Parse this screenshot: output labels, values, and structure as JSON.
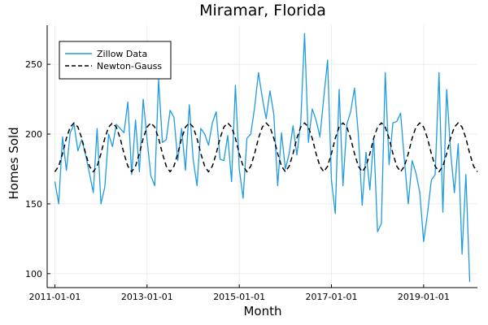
{
  "chart_data": {
    "type": "line",
    "title": "Miramar, Florida",
    "xlabel": "Month",
    "ylabel": "Homes Sold",
    "x_ticks": [
      "2011-01-01",
      "2013-01-01",
      "2015-01-01",
      "2017-01-01",
      "2019-01-01"
    ],
    "y_ticks": [
      100,
      150,
      200,
      250
    ],
    "xlim": [
      "2010-11-01",
      "2020-03-01"
    ],
    "ylim": [
      90,
      278
    ],
    "grid": true,
    "legend_position": "top-left",
    "series": [
      {
        "name": "Zillow Data",
        "color": "#1f9bde",
        "style": "solid",
        "points": [
          [
            "2011-01",
            166
          ],
          [
            "2011-02",
            150
          ],
          [
            "2011-03",
            198
          ],
          [
            "2011-04",
            174
          ],
          [
            "2011-05",
            201
          ],
          [
            "2011-06",
            207
          ],
          [
            "2011-07",
            188
          ],
          [
            "2011-08",
            196
          ],
          [
            "2011-09",
            185
          ],
          [
            "2011-10",
            172
          ],
          [
            "2011-11",
            158
          ],
          [
            "2011-12",
            204
          ],
          [
            "2012-01",
            150
          ],
          [
            "2012-02",
            162
          ],
          [
            "2012-03",
            200
          ],
          [
            "2012-04",
            191
          ],
          [
            "2012-05",
            207
          ],
          [
            "2012-06",
            204
          ],
          [
            "2012-07",
            201
          ],
          [
            "2012-08",
            223
          ],
          [
            "2012-09",
            171
          ],
          [
            "2012-10",
            210
          ],
          [
            "2012-11",
            173
          ],
          [
            "2012-12",
            225
          ],
          [
            "2013-01",
            196
          ],
          [
            "2013-02",
            170
          ],
          [
            "2013-03",
            163
          ],
          [
            "2013-04",
            239
          ],
          [
            "2013-05",
            194
          ],
          [
            "2013-06",
            196
          ],
          [
            "2013-07",
            217
          ],
          [
            "2013-08",
            212
          ],
          [
            "2013-09",
            181
          ],
          [
            "2013-10",
            204
          ],
          [
            "2013-11",
            174
          ],
          [
            "2013-12",
            221
          ],
          [
            "2014-01",
            182
          ],
          [
            "2014-02",
            163
          ],
          [
            "2014-03",
            204
          ],
          [
            "2014-04",
            200
          ],
          [
            "2014-05",
            192
          ],
          [
            "2014-06",
            208
          ],
          [
            "2014-07",
            216
          ],
          [
            "2014-08",
            182
          ],
          [
            "2014-09",
            181
          ],
          [
            "2014-10",
            199
          ],
          [
            "2014-11",
            166
          ],
          [
            "2014-12",
            235
          ],
          [
            "2015-01",
            175
          ],
          [
            "2015-02",
            154
          ],
          [
            "2015-03",
            197
          ],
          [
            "2015-04",
            200
          ],
          [
            "2015-05",
            219
          ],
          [
            "2015-06",
            244
          ],
          [
            "2015-07",
            226
          ],
          [
            "2015-08",
            211
          ],
          [
            "2015-09",
            231
          ],
          [
            "2015-10",
            214
          ],
          [
            "2015-11",
            163
          ],
          [
            "2015-12",
            201
          ],
          [
            "2016-01",
            175
          ],
          [
            "2016-02",
            186
          ],
          [
            "2016-03",
            206
          ],
          [
            "2016-04",
            185
          ],
          [
            "2016-05",
            208
          ],
          [
            "2016-06",
            272
          ],
          [
            "2016-07",
            194
          ],
          [
            "2016-08",
            218
          ],
          [
            "2016-09",
            210
          ],
          [
            "2016-10",
            198
          ],
          [
            "2016-11",
            226
          ],
          [
            "2016-12",
            253
          ],
          [
            "2017-01",
            167
          ],
          [
            "2017-02",
            143
          ],
          [
            "2017-03",
            232
          ],
          [
            "2017-04",
            163
          ],
          [
            "2017-05",
            207
          ],
          [
            "2017-06",
            216
          ],
          [
            "2017-07",
            233
          ],
          [
            "2017-08",
            200
          ],
          [
            "2017-09",
            149
          ],
          [
            "2017-10",
            187
          ],
          [
            "2017-11",
            160
          ],
          [
            "2017-12",
            197
          ],
          [
            "2018-01",
            130
          ],
          [
            "2018-02",
            136
          ],
          [
            "2018-03",
            244
          ],
          [
            "2018-04",
            178
          ],
          [
            "2018-05",
            208
          ],
          [
            "2018-06",
            209
          ],
          [
            "2018-07",
            215
          ],
          [
            "2018-08",
            181
          ],
          [
            "2018-09",
            150
          ],
          [
            "2018-10",
            181
          ],
          [
            "2018-11",
            172
          ],
          [
            "2018-12",
            158
          ],
          [
            "2019-01",
            123
          ],
          [
            "2019-02",
            143
          ],
          [
            "2019-03",
            167
          ],
          [
            "2019-04",
            171
          ],
          [
            "2019-05",
            244
          ],
          [
            "2019-06",
            144
          ],
          [
            "2019-07",
            232
          ],
          [
            "2019-08",
            188
          ],
          [
            "2019-09",
            158
          ],
          [
            "2019-10",
            193
          ],
          [
            "2019-11",
            114
          ],
          [
            "2019-12",
            171
          ],
          [
            "2020-01",
            94
          ]
        ]
      },
      {
        "name": "Newton-Gauss",
        "color": "#000000",
        "style": "dashed",
        "points": [
          [
            "2011-01",
            173
          ],
          [
            "2011-02",
            177
          ],
          [
            "2011-03",
            186
          ],
          [
            "2011-04",
            197
          ],
          [
            "2011-05",
            205
          ],
          [
            "2011-06",
            208
          ],
          [
            "2011-07",
            205
          ],
          [
            "2011-08",
            197
          ],
          [
            "2011-09",
            186
          ],
          [
            "2011-10",
            177
          ],
          [
            "2011-11",
            173
          ],
          [
            "2011-12",
            177
          ],
          [
            "2012-01",
            186
          ],
          [
            "2012-02",
            197
          ],
          [
            "2012-03",
            205
          ],
          [
            "2012-04",
            208
          ],
          [
            "2012-05",
            205
          ],
          [
            "2012-06",
            197
          ],
          [
            "2012-07",
            186
          ],
          [
            "2012-08",
            177
          ],
          [
            "2012-09",
            173
          ],
          [
            "2012-10",
            177
          ],
          [
            "2012-11",
            186
          ],
          [
            "2012-12",
            197
          ],
          [
            "2013-01",
            205
          ],
          [
            "2013-02",
            208
          ],
          [
            "2013-03",
            205
          ],
          [
            "2013-04",
            197
          ],
          [
            "2013-05",
            186
          ],
          [
            "2013-06",
            177
          ],
          [
            "2013-07",
            173
          ],
          [
            "2013-08",
            177
          ],
          [
            "2013-09",
            186
          ],
          [
            "2013-10",
            197
          ],
          [
            "2013-11",
            205
          ],
          [
            "2013-12",
            208
          ],
          [
            "2014-01",
            205
          ],
          [
            "2014-02",
            197
          ],
          [
            "2014-03",
            186
          ],
          [
            "2014-04",
            177
          ],
          [
            "2014-05",
            173
          ],
          [
            "2014-06",
            177
          ],
          [
            "2014-07",
            186
          ],
          [
            "2014-08",
            197
          ],
          [
            "2014-09",
            205
          ],
          [
            "2014-10",
            208
          ],
          [
            "2014-11",
            205
          ],
          [
            "2014-12",
            197
          ],
          [
            "2015-01",
            186
          ],
          [
            "2015-02",
            177
          ],
          [
            "2015-03",
            173
          ],
          [
            "2015-04",
            177
          ],
          [
            "2015-05",
            186
          ],
          [
            "2015-06",
            197
          ],
          [
            "2015-07",
            205
          ],
          [
            "2015-08",
            208
          ],
          [
            "2015-09",
            205
          ],
          [
            "2015-10",
            197
          ],
          [
            "2015-11",
            186
          ],
          [
            "2015-12",
            177
          ],
          [
            "2016-01",
            173
          ],
          [
            "2016-02",
            177
          ],
          [
            "2016-03",
            186
          ],
          [
            "2016-04",
            197
          ],
          [
            "2016-05",
            205
          ],
          [
            "2016-06",
            208
          ],
          [
            "2016-07",
            205
          ],
          [
            "2016-08",
            197
          ],
          [
            "2016-09",
            186
          ],
          [
            "2016-10",
            177
          ],
          [
            "2016-11",
            173
          ],
          [
            "2016-12",
            177
          ],
          [
            "2017-01",
            186
          ],
          [
            "2017-02",
            197
          ],
          [
            "2017-03",
            205
          ],
          [
            "2017-04",
            208
          ],
          [
            "2017-05",
            205
          ],
          [
            "2017-06",
            197
          ],
          [
            "2017-07",
            186
          ],
          [
            "2017-08",
            177
          ],
          [
            "2017-09",
            173
          ],
          [
            "2017-10",
            177
          ],
          [
            "2017-11",
            186
          ],
          [
            "2017-12",
            197
          ],
          [
            "2018-01",
            205
          ],
          [
            "2018-02",
            208
          ],
          [
            "2018-03",
            205
          ],
          [
            "2018-04",
            197
          ],
          [
            "2018-05",
            186
          ],
          [
            "2018-06",
            177
          ],
          [
            "2018-07",
            173
          ],
          [
            "2018-08",
            177
          ],
          [
            "2018-09",
            186
          ],
          [
            "2018-10",
            197
          ],
          [
            "2018-11",
            205
          ],
          [
            "2018-12",
            208
          ],
          [
            "2019-01",
            205
          ],
          [
            "2019-02",
            197
          ],
          [
            "2019-03",
            186
          ],
          [
            "2019-04",
            177
          ],
          [
            "2019-05",
            173
          ],
          [
            "2019-06",
            177
          ],
          [
            "2019-07",
            186
          ],
          [
            "2019-08",
            197
          ],
          [
            "2019-09",
            205
          ],
          [
            "2019-10",
            208
          ],
          [
            "2019-11",
            205
          ],
          [
            "2019-12",
            197
          ],
          [
            "2020-01",
            186
          ],
          [
            "2020-02",
            177
          ],
          [
            "2020-03",
            173
          ]
        ]
      }
    ]
  }
}
